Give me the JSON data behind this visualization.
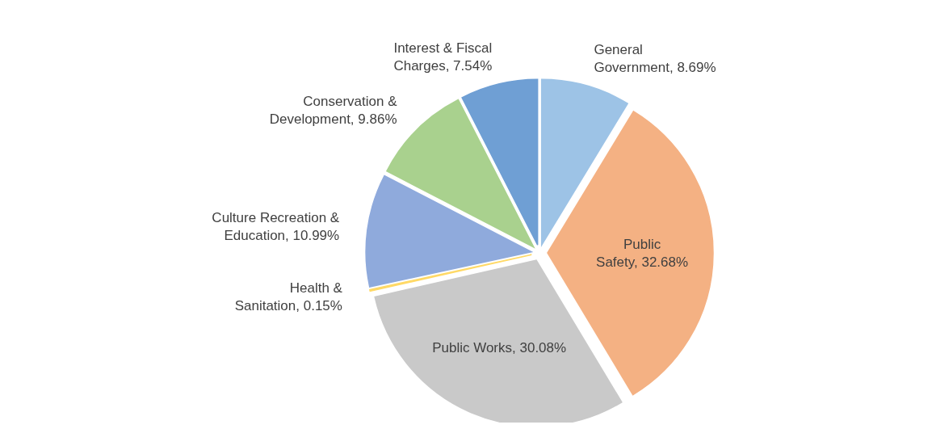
{
  "chart_data": {
    "type": "pie",
    "categories": [
      "General Government",
      "Public Safety",
      "Public Works",
      "Health & Sanitation",
      "Culture Recreation & Education",
      "Conservation & Development",
      "Interest & Fiscal Charges"
    ],
    "values": [
      8.69,
      32.68,
      30.08,
      0.15,
      10.99,
      9.86,
      7.54
    ],
    "colors": [
      "#9dc3e6",
      "#f4b183",
      "#c9c9c9",
      "#ffd966",
      "#8faadc",
      "#a9d18e",
      "#6f9fd4"
    ],
    "value_labels": [
      "8.69%",
      "32.68%",
      "30.08%",
      "0.15%",
      "10.99%",
      "9.86%",
      "7.54%"
    ],
    "legend": false
  }
}
